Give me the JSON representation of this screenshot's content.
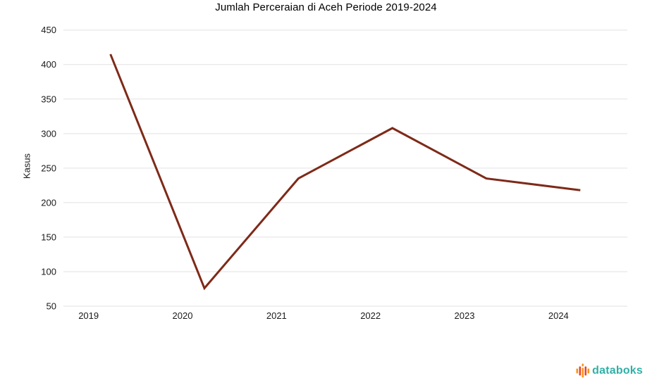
{
  "title": "Jumlah Perceraian di Aceh Periode 2019-2024",
  "ylabel": "Kasus",
  "logo": {
    "text": "databoks"
  },
  "colors": {
    "line": "#7E2A18",
    "grid": "#e2e2e2",
    "tick_text": "#1a1a1a",
    "title_text": "#000000",
    "logo_text": "#30b0a6",
    "logo_orange": "#f7941d",
    "logo_red": "#ee4123"
  },
  "chart_data": {
    "type": "line",
    "title": "Jumlah Perceraian di Aceh Periode 2019-2024",
    "categories": [
      "2019",
      "2020",
      "2021",
      "2022",
      "2023",
      "2024"
    ],
    "values": [
      415,
      76,
      235,
      308,
      235,
      218
    ],
    "xlabel": "",
    "ylabel": "Kasus",
    "ylim": [
      50,
      450
    ],
    "yticks": [
      450,
      400,
      350,
      300,
      250,
      200,
      150,
      100,
      50
    ],
    "grid": true,
    "legend": "none"
  }
}
